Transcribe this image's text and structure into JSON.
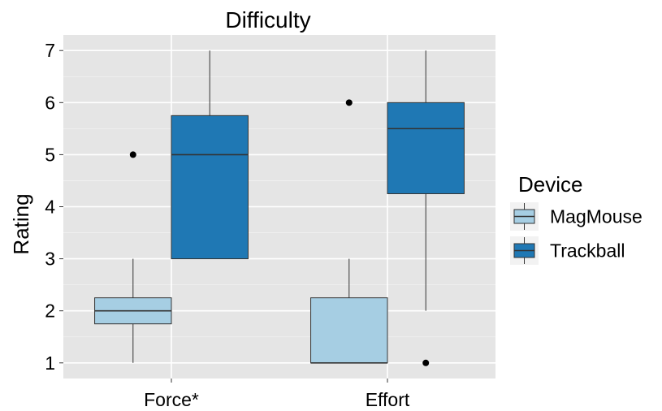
{
  "chart_data": {
    "type": "boxplot",
    "title": "Difficulty",
    "xlabel": "",
    "ylabel": "Rating",
    "ylim": [
      0.7,
      7.3
    ],
    "yticks": [
      1,
      2,
      3,
      4,
      5,
      6,
      7
    ],
    "categories": [
      "Force*",
      "Effort"
    ],
    "grid": true,
    "legend": {
      "title": "Device",
      "position": "right"
    },
    "series": [
      {
        "name": "MagMouse",
        "color": "#a6cee3",
        "boxes": [
          {
            "category": "Force*",
            "whisker_low": 1,
            "q1": 1.75,
            "median": 2,
            "q3": 2.25,
            "whisker_high": 3,
            "outliers": [
              5
            ]
          },
          {
            "category": "Effort",
            "whisker_low": 1,
            "q1": 1,
            "median": 1,
            "q3": 2.25,
            "whisker_high": 3,
            "outliers": [
              6
            ]
          }
        ]
      },
      {
        "name": "Trackball",
        "color": "#1f78b4",
        "boxes": [
          {
            "category": "Force*",
            "whisker_low": 3,
            "q1": 3,
            "median": 5,
            "q3": 5.75,
            "whisker_high": 7,
            "outliers": []
          },
          {
            "category": "Effort",
            "whisker_low": 2,
            "q1": 4.25,
            "median": 5.5,
            "q3": 6,
            "whisker_high": 7,
            "outliers": [
              1
            ]
          }
        ]
      }
    ]
  }
}
